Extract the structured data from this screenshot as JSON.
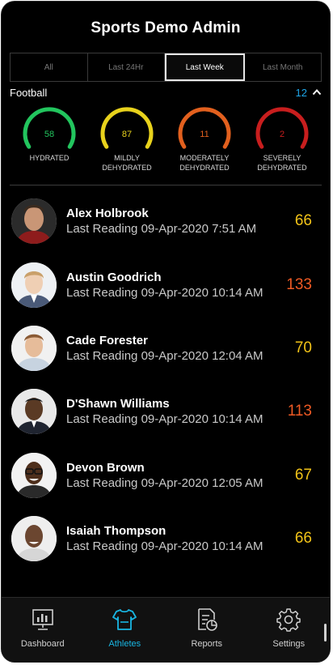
{
  "app_title": "Sports Demo Admin",
  "filter_tabs": [
    {
      "label": "All",
      "active": false
    },
    {
      "label": "Last 24Hr",
      "active": false
    },
    {
      "label": "Last Week",
      "active": true
    },
    {
      "label": "Last Month",
      "active": false
    }
  ],
  "section": {
    "title": "Football",
    "count": "12"
  },
  "gauges": [
    {
      "value": "58",
      "label_line1": "HYDRATED",
      "label_line2": "",
      "color": "#22c55e",
      "track": "#0f3d1e"
    },
    {
      "value": "87",
      "label_line1": "MILDLY",
      "label_line2": "DEHYDRATED",
      "color": "#e8d21c",
      "track": "#4a4208"
    },
    {
      "value": "11",
      "label_line1": "MODERATELY",
      "label_line2": "DEHYDRATED",
      "color": "#e2601e",
      "track": "#4a2108"
    },
    {
      "value": "2",
      "label_line1": "SEVERELY",
      "label_line2": "DEHYDRATED",
      "color": "#c81e1e",
      "track": "#460a0a"
    }
  ],
  "athletes": [
    {
      "name": "Alex Holbrook",
      "reading": "Last Reading 09-Apr-2020 7:51 AM",
      "value": "66",
      "value_color": "#f2c318"
    },
    {
      "name": "Austin Goodrich",
      "reading": "Last Reading 09-Apr-2020 10:14 AM",
      "value": "133",
      "value_color": "#ef5a24"
    },
    {
      "name": "Cade Forester",
      "reading": "Last Reading 09-Apr-2020 12:04 AM",
      "value": "70",
      "value_color": "#f2c318"
    },
    {
      "name": "D'Shawn Williams",
      "reading": "Last Reading 09-Apr-2020 10:14 AM",
      "value": "113",
      "value_color": "#ef5a24"
    },
    {
      "name": "Devon Brown",
      "reading": "Last Reading 09-Apr-2020 12:05 AM",
      "value": "67",
      "value_color": "#f2c318"
    },
    {
      "name": "Isaiah Thompson",
      "reading": "Last Reading 09-Apr-2020 10:14 AM",
      "value": "66",
      "value_color": "#f2c318"
    }
  ],
  "nav": [
    {
      "label": "Dashboard",
      "icon": "dashboard-icon",
      "active": false
    },
    {
      "label": "Athletes",
      "icon": "jersey-icon",
      "active": true
    },
    {
      "label": "Reports",
      "icon": "reports-icon",
      "active": false
    },
    {
      "label": "Settings",
      "icon": "gear-icon",
      "active": false
    }
  ],
  "colors": {
    "accent": "#19b6e3",
    "background": "#000000"
  }
}
